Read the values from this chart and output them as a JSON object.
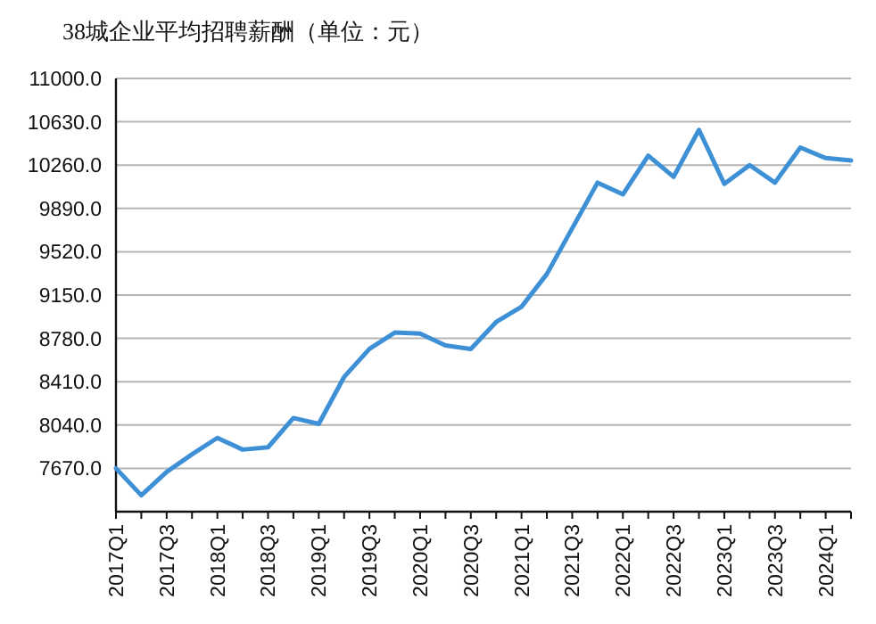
{
  "chart_data": {
    "type": "line",
    "title": "38城企业平均招聘薪酬（单位：元）",
    "categories": [
      "2017Q1",
      null,
      "2017Q3",
      null,
      "2018Q1",
      null,
      "2018Q3",
      null,
      "2019Q1",
      null,
      "2019Q3",
      null,
      "2020Q1",
      null,
      "2020Q3",
      null,
      "2021Q1",
      null,
      "2021Q3",
      null,
      "2022Q1",
      null,
      "2022Q3",
      null,
      "2023Q1",
      null,
      "2023Q3",
      null,
      "2024Q1",
      null
    ],
    "series": [
      {
        "color": "#3d8fd6",
        "values": [
          7670,
          7440,
          7640,
          7790,
          7930,
          7830,
          7850,
          8100,
          8050,
          8450,
          8690,
          8830,
          8820,
          8720,
          8690,
          8920,
          9050,
          9330,
          9720,
          10110,
          10010,
          10340,
          10160,
          10560,
          10100,
          10260,
          10110,
          10410,
          10320,
          10300
        ]
      }
    ],
    "ylim": [
      7300,
      11000
    ],
    "yticks": [
      {
        "value": 7670,
        "label": "7670.0"
      },
      {
        "value": 8040,
        "label": "8040.0"
      },
      {
        "value": 8410,
        "label": "8410.0"
      },
      {
        "value": 8780,
        "label": "8780.0"
      },
      {
        "value": 9150,
        "label": "9150.0"
      },
      {
        "value": 9520,
        "label": "9520.0"
      },
      {
        "value": 9890,
        "label": "9890.0"
      },
      {
        "value": 10260,
        "label": "10260.0"
      },
      {
        "value": 10630,
        "label": "10630.0"
      },
      {
        "value": 11000,
        "label": "11000.0"
      }
    ],
    "grid": "y",
    "marker": "none",
    "line_style": "solid"
  }
}
